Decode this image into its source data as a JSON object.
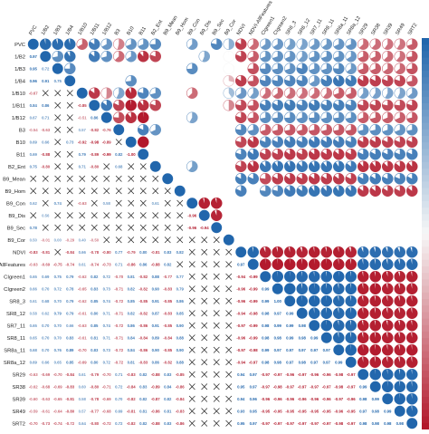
{
  "chart_data": {
    "type": "heatmap",
    "subtype": "correlogram (mixed: lower = coefficient text / X for non-significant, upper = pie, diagonal = circle)",
    "variables": [
      "PVC",
      "1/B2",
      "1/B3",
      "1/B4",
      "1/B10",
      "1/B11",
      "1/B12",
      "B3",
      "B10",
      "B11",
      "B2_Ent",
      "B9_Mean",
      "B9_Hom",
      "B9_Con",
      "B9_Dis",
      "B9_Sec",
      "B9_Cor",
      "NDVI",
      "NDVI-AllFeatures",
      "CIgreen1",
      "CIgreen2",
      "SR8_3",
      "SR8_12",
      "SR7_11",
      "SR8_11",
      "SR8a_11",
      "SR8a_12",
      "SR29",
      "SR38",
      "SR39",
      "SR49",
      "SRT2"
    ],
    "color_scale": {
      "negative": "#b2182b",
      "zero": "#f7f7f7",
      "positive": "#2166ac",
      "range": [
        -1,
        1
      ]
    },
    "lower_triangle_labels": [
      [],
      [
        "0.97"
      ],
      [
        "0.95",
        "0.72"
      ],
      [
        "0.96",
        "0.91",
        "0.75"
      ],
      [
        "-0.67",
        "X",
        "X",
        "X"
      ],
      [
        "0.84",
        "0.86",
        "X",
        "X",
        "-0.85"
      ],
      [
        "0.67",
        "0.71",
        "X",
        "X",
        "-0.51",
        "0.86"
      ],
      [
        "-0.54",
        "-0.63",
        "X",
        "X",
        "0.57",
        "-0.82",
        "-0.76"
      ],
      [
        "0.69",
        "0.66",
        "X",
        "0.73",
        "-0.92",
        "-0.98",
        "-0.89",
        "X"
      ],
      [
        "0.69",
        "-0.88",
        "X",
        "X",
        "0.79",
        "-0.89",
        "-0.99",
        "0.82",
        "-1.00"
      ],
      [
        "0.75",
        "-0.80",
        "X",
        "X",
        "0.71",
        "-0.80",
        "X",
        "0.68",
        "X",
        "X"
      ],
      [
        "X",
        "X",
        "X",
        "X",
        "X",
        "X",
        "X",
        "X",
        "X",
        "X",
        "X"
      ],
      [
        "X",
        "X",
        "X",
        "X",
        "X",
        "X",
        "X",
        "X",
        "X",
        "X",
        "X",
        "X"
      ],
      [
        "0.62",
        "X",
        "0.74",
        "X",
        "-0.63",
        "X",
        "0.58",
        "X",
        "X",
        "X",
        "0.61",
        "X",
        "X"
      ],
      [
        "X",
        "0.56",
        "X",
        "X",
        "X",
        "X",
        "X",
        "X",
        "X",
        "X",
        "X",
        "X",
        "X",
        "-0.96"
      ],
      [
        "0.78",
        "X",
        "X",
        "X",
        "X",
        "X",
        "X",
        "X",
        "X",
        "X",
        "X",
        "X",
        "X",
        "-0.96",
        "-0.94"
      ],
      [
        "0.50",
        "-0.01",
        "0.00",
        "-0.29",
        "0.40",
        "-0.50",
        "X",
        "X",
        "X",
        "X",
        "X",
        "X",
        "X",
        "X",
        "X",
        "X"
      ],
      [
        "-0.83",
        "-0.81",
        "X",
        "-0.84",
        "0.66",
        "-0.78",
        "-0.80",
        "0.77",
        "-0.79",
        "0.80",
        "-0.81",
        "0.83",
        "0.82",
        "X",
        "X",
        "X",
        "X"
      ],
      [
        "-0.63",
        "-0.69",
        "-0.75",
        "-0.74",
        "0.61",
        "-0.74",
        "-0.73",
        "0.71",
        "-0.86",
        "0.86",
        "-0.88",
        "0.82",
        "X",
        "X",
        "X",
        "X",
        "X",
        "0.97"
      ],
      [
        "0.65",
        "0.69",
        "0.75",
        "0.79",
        "-0.62",
        "0.82",
        "0.72",
        "-0.70",
        "0.81",
        "-0.82",
        "0.88",
        "-0.77",
        "0.77",
        "X",
        "X",
        "X",
        "X",
        "-0.94",
        "-0.99"
      ],
      [
        "0.66",
        "0.70",
        "0.72",
        "0.78",
        "-0.65",
        "0.83",
        "0.73",
        "-0.71",
        "0.82",
        "-0.82",
        "0.90",
        "-0.83",
        "0.79",
        "X",
        "X",
        "X",
        "X",
        "-0.96",
        "-0.99",
        "0.99"
      ],
      [
        "0.61",
        "0.68",
        "0.70",
        "0.79",
        "-0.62",
        "0.85",
        "0.74",
        "-0.72",
        "0.85",
        "-0.85",
        "0.91",
        "-0.85",
        "0.86",
        "X",
        "X",
        "X",
        "X",
        "-0.96",
        "-0.99",
        "0.99",
        "1.00"
      ],
      [
        "0.58",
        "0.62",
        "0.79",
        "0.79",
        "-0.61",
        "0.80",
        "0.71",
        "-0.71",
        "0.82",
        "-0.82",
        "0.87",
        "-0.83",
        "0.85",
        "X",
        "X",
        "X",
        "X",
        "-0.94",
        "-0.98",
        "0.98",
        "0.97",
        "0.99"
      ],
      [
        "0.65",
        "0.70",
        "0.70",
        "0.66",
        "-0.63",
        "0.85",
        "0.74",
        "-0.72",
        "0.86",
        "-0.86",
        "0.91",
        "-0.85",
        "0.90",
        "X",
        "X",
        "X",
        "X",
        "-0.97",
        "-0.99",
        "0.98",
        "0.99",
        "0.99",
        "0.98"
      ],
      [
        "0.65",
        "0.70",
        "0.70",
        "0.83",
        "-0.61",
        "0.81",
        "0.71",
        "-0.71",
        "0.84",
        "-0.84",
        "0.89",
        "-0.84",
        "0.88",
        "X",
        "X",
        "X",
        "X",
        "-0.96",
        "-0.99",
        "0.98",
        "0.98",
        "0.99",
        "0.98",
        "0.99"
      ],
      [
        "0.68",
        "0.70",
        "0.76",
        "0.89",
        "-0.70",
        "0.83",
        "0.73",
        "-0.72",
        "0.84",
        "-0.86",
        "0.90",
        "-0.85",
        "0.90",
        "X",
        "X",
        "X",
        "X",
        "-0.97",
        "-0.98",
        "0.99",
        "0.97",
        "0.97",
        "0.97",
        "0.97",
        "0.97"
      ],
      [
        "0.69",
        "0.66",
        "0.65",
        "0.85",
        "-0.69",
        "0.80",
        "0.72",
        "-0.72",
        "0.81",
        "-0.83",
        "0.86",
        "-0.82",
        "0.88",
        "X",
        "X",
        "X",
        "X",
        "-0.94",
        "-0.97",
        "0.98",
        "0.98",
        "0.97",
        "0.98",
        "0.97",
        "0.97",
        "0.99"
      ],
      [
        "-0.63",
        "-0.69",
        "-0.70",
        "-0.84",
        "0.61",
        "-0.79",
        "-0.70",
        "0.71",
        "-0.83",
        "0.82",
        "-0.88",
        "0.83",
        "-0.85",
        "X",
        "X",
        "X",
        "X",
        "0.94",
        "0.97",
        "-0.97",
        "-0.97",
        "-0.96",
        "-0.97",
        "-0.96",
        "-0.96",
        "-0.98",
        "-0.97"
      ],
      [
        "-0.62",
        "-0.68",
        "-0.69",
        "-0.83",
        "0.60",
        "-0.80",
        "-0.71",
        "0.72",
        "-0.84",
        "0.83",
        "-0.89",
        "0.84",
        "-0.86",
        "X",
        "X",
        "X",
        "X",
        "0.95",
        "0.97",
        "-0.97",
        "-0.98",
        "-0.97",
        "-0.97",
        "-0.97",
        "-0.97",
        "-0.98",
        "-0.97",
        "0.99"
      ],
      [
        "-0.60",
        "-0.63",
        "-0.65",
        "-0.81",
        "0.58",
        "-0.78",
        "-0.69",
        "0.70",
        "-0.82",
        "0.82",
        "-0.87",
        "0.82",
        "-0.84",
        "X",
        "X",
        "X",
        "X",
        "0.94",
        "0.96",
        "-0.96",
        "-0.96",
        "-0.96",
        "-0.96",
        "-0.96",
        "-0.96",
        "-0.97",
        "-0.96",
        "0.98",
        "0.99"
      ],
      [
        "-0.59",
        "-0.61",
        "-0.64",
        "-0.80",
        "0.57",
        "-0.77",
        "-0.68",
        "0.69",
        "-0.81",
        "0.81",
        "-0.86",
        "0.81",
        "-0.83",
        "X",
        "X",
        "X",
        "X",
        "0.93",
        "0.95",
        "-0.95",
        "-0.95",
        "-0.95",
        "-0.95",
        "-0.95",
        "-0.95",
        "-0.96",
        "-0.95",
        "0.97",
        "0.98",
        "0.99"
      ],
      [
        "-0.70",
        "-0.73",
        "-0.74",
        "-0.72",
        "0.64",
        "-0.80",
        "-0.72",
        "0.72",
        "-0.82",
        "0.82",
        "-0.88",
        "0.83",
        "-0.86",
        "X",
        "X",
        "X",
        "X",
        "0.95",
        "0.97",
        "-0.97",
        "-0.97",
        "-0.97",
        "-0.97",
        "-0.97",
        "-0.97",
        "-0.98",
        "-0.97",
        "0.98",
        "0.98",
        "0.98",
        "0.98"
      ]
    ]
  }
}
